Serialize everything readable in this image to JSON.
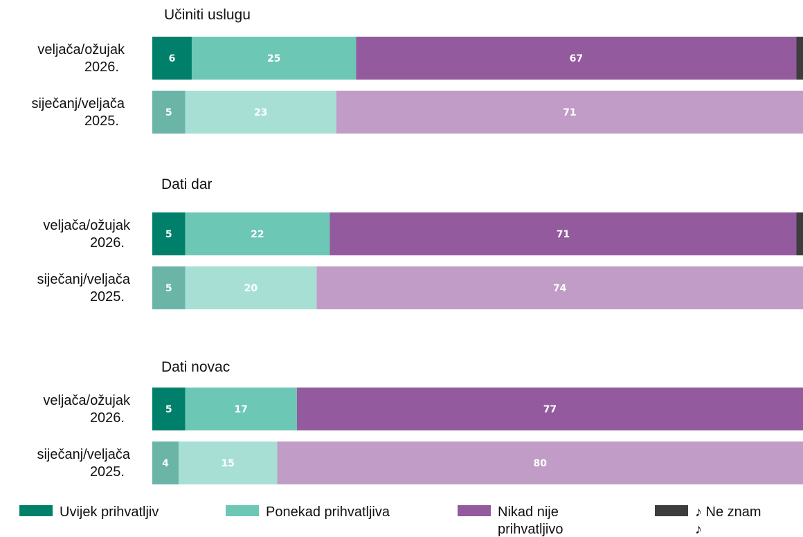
{
  "chart_data": {
    "type": "bar",
    "orientation": "horizontal",
    "stacked": true,
    "xlim": [
      0,
      100
    ],
    "legend": {
      "placement": "bottom",
      "items": [
        {
          "label": "Uvijek prihvatljiv",
          "color": "#00806a"
        },
        {
          "label": "Ponekad prihvatljiva",
          "color": "#6dc7b5"
        },
        {
          "label": "Nikad nije prihvatljivo",
          "color": "#935a9e"
        },
        {
          "label": "♪ Ne znam ♪",
          "color": "#3d3d3d"
        }
      ]
    },
    "groups": [
      {
        "title": "Učiniti uslugu",
        "rows": [
          {
            "label": "veljača/ožujak 2026.",
            "values": [
              6,
              25,
              67,
              1
            ],
            "style": "dark"
          },
          {
            "label": "siječanj/veljača 2025.",
            "values": [
              5,
              23,
              71,
              0
            ],
            "style": "light"
          }
        ]
      },
      {
        "title": "Dati dar",
        "rows": [
          {
            "label": "veljača/ožujak 2026.",
            "values": [
              5,
              22,
              71,
              1
            ],
            "style": "dark"
          },
          {
            "label": "siječanj/veljača 2025.",
            "values": [
              5,
              20,
              74,
              0
            ],
            "style": "light"
          }
        ]
      },
      {
        "title": "Dati novac",
        "rows": [
          {
            "label": "veljača/ožujak 2026.",
            "values": [
              5,
              17,
              77,
              0
            ],
            "style": "dark"
          },
          {
            "label": "siječanj/veljača 2025.",
            "values": [
              4,
              15,
              80,
              0
            ],
            "style": "light"
          }
        ]
      }
    ],
    "colors": {
      "dark": [
        "#00806a",
        "#6dc7b5",
        "#935a9e",
        "#3d3d3d"
      ],
      "light": [
        "#6ab5a6",
        "#a8dfd5",
        "#c09cc7",
        "#9a9a9a"
      ]
    }
  }
}
